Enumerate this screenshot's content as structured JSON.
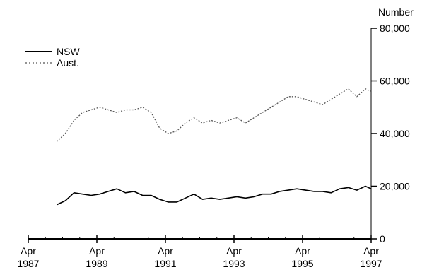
{
  "chart_data": {
    "type": "line",
    "ylabel": "Number",
    "ylim": [
      0,
      80000
    ],
    "y_ticks": [
      {
        "value": 0,
        "label": "0"
      },
      {
        "value": 20000,
        "label": "20,000"
      },
      {
        "value": 40000,
        "label": "40,000"
      },
      {
        "value": 60000,
        "label": "60,000"
      },
      {
        "value": 80000,
        "label": "80,000"
      }
    ],
    "xlim": [
      "1987-04",
      "1997-04"
    ],
    "x_ticks": [
      {
        "value": "1987-04",
        "month": "Apr",
        "year": "1987"
      },
      {
        "value": "1989-04",
        "month": "Apr",
        "year": "1989"
      },
      {
        "value": "1991-04",
        "month": "Apr",
        "year": "1991"
      },
      {
        "value": "1993-04",
        "month": "Apr",
        "year": "1993"
      },
      {
        "value": "1995-04",
        "month": "Apr",
        "year": "1995"
      },
      {
        "value": "1997-04",
        "month": "Apr",
        "year": "1997"
      }
    ],
    "legend": "top-left",
    "grid": false,
    "series": [
      {
        "name": "NSW",
        "style": "solid",
        "color": "#000000",
        "x": [
          "1988-02",
          "1988-05",
          "1988-08",
          "1988-11",
          "1989-02",
          "1989-05",
          "1989-08",
          "1989-11",
          "1990-02",
          "1990-05",
          "1990-08",
          "1990-11",
          "1991-02",
          "1991-05",
          "1991-08",
          "1991-11",
          "1992-02",
          "1992-05",
          "1992-08",
          "1992-11",
          "1993-02",
          "1993-05",
          "1993-08",
          "1993-11",
          "1994-02",
          "1994-05",
          "1994-08",
          "1994-11",
          "1995-02",
          "1995-05",
          "1995-08",
          "1995-11",
          "1996-02",
          "1996-05",
          "1996-08",
          "1996-11",
          "1997-02",
          "1997-04"
        ],
        "values": [
          13000,
          14500,
          17500,
          17000,
          16500,
          17000,
          18000,
          19000,
          17500,
          18000,
          16500,
          16500,
          15000,
          14000,
          14000,
          15500,
          17000,
          15000,
          15500,
          15000,
          15500,
          16000,
          15500,
          16000,
          17000,
          17000,
          18000,
          18500,
          19000,
          18500,
          18000,
          18000,
          17500,
          19000,
          19500,
          18500,
          20000,
          19000
        ]
      },
      {
        "name": "Aust.",
        "style": "dotted",
        "color": "#555555",
        "x": [
          "1988-02",
          "1988-05",
          "1988-08",
          "1988-11",
          "1989-02",
          "1989-05",
          "1989-08",
          "1989-11",
          "1990-02",
          "1990-05",
          "1990-08",
          "1990-11",
          "1991-02",
          "1991-05",
          "1991-08",
          "1991-11",
          "1992-02",
          "1992-05",
          "1992-08",
          "1992-11",
          "1993-02",
          "1993-05",
          "1993-08",
          "1993-11",
          "1994-02",
          "1994-05",
          "1994-08",
          "1994-11",
          "1995-02",
          "1995-05",
          "1995-08",
          "1995-11",
          "1996-02",
          "1996-05",
          "1996-08",
          "1996-11",
          "1997-02",
          "1997-04"
        ],
        "values": [
          37000,
          40000,
          45000,
          48000,
          49000,
          50000,
          49000,
          48000,
          49000,
          49000,
          50000,
          48000,
          42000,
          40000,
          41000,
          44000,
          46000,
          44000,
          45000,
          44000,
          45000,
          46000,
          44000,
          46000,
          48000,
          50000,
          52000,
          54000,
          54000,
          53000,
          52000,
          51000,
          53000,
          55000,
          57000,
          54000,
          57000,
          56000
        ]
      }
    ]
  }
}
